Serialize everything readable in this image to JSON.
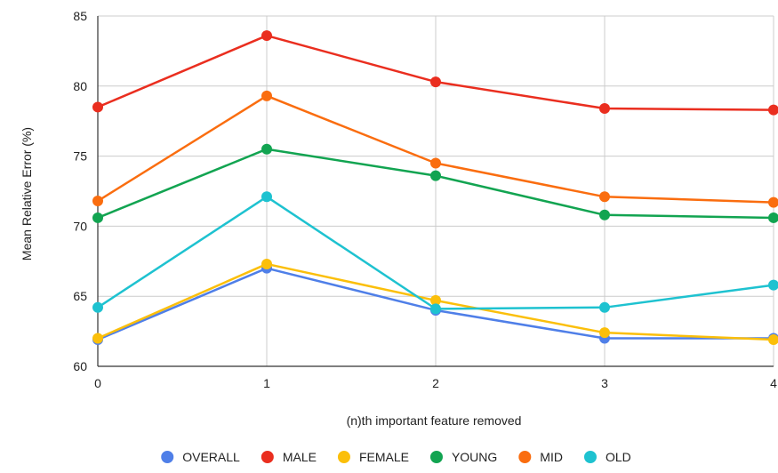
{
  "chart_data": {
    "type": "line",
    "title": "",
    "xlabel": "(n)th important feature removed",
    "ylabel": "Mean Relative Error (%)",
    "x": [
      0,
      1,
      2,
      3,
      4
    ],
    "x_tick_labels": [
      "0",
      "1",
      "2",
      "3",
      "4"
    ],
    "ylim": [
      60,
      85
    ],
    "y_ticks": [
      60,
      65,
      70,
      75,
      80,
      85
    ],
    "y_tick_labels": [
      "60",
      "65",
      "70",
      "75",
      "80",
      "85"
    ],
    "grid": true,
    "legend_position": "bottom",
    "series": [
      {
        "name": "OVERALL",
        "color": "#4f7fe8",
        "values": [
          61.9,
          67.0,
          64.0,
          62.0,
          62.0
        ]
      },
      {
        "name": "MALE",
        "color": "#ea2e1f",
        "values": [
          78.5,
          83.6,
          80.3,
          78.4,
          78.3
        ]
      },
      {
        "name": "FEMALE",
        "color": "#fbbf0a",
        "values": [
          62.0,
          67.3,
          64.7,
          62.4,
          61.9
        ]
      },
      {
        "name": "YOUNG",
        "color": "#12a451",
        "values": [
          70.6,
          75.5,
          73.6,
          70.8,
          70.6
        ]
      },
      {
        "name": "MID",
        "color": "#fa6d0f",
        "values": [
          71.8,
          79.3,
          74.5,
          72.1,
          71.7
        ]
      },
      {
        "name": "OLD",
        "color": "#1ec2d0",
        "values": [
          64.2,
          72.1,
          64.1,
          64.2,
          65.8
        ]
      }
    ]
  }
}
